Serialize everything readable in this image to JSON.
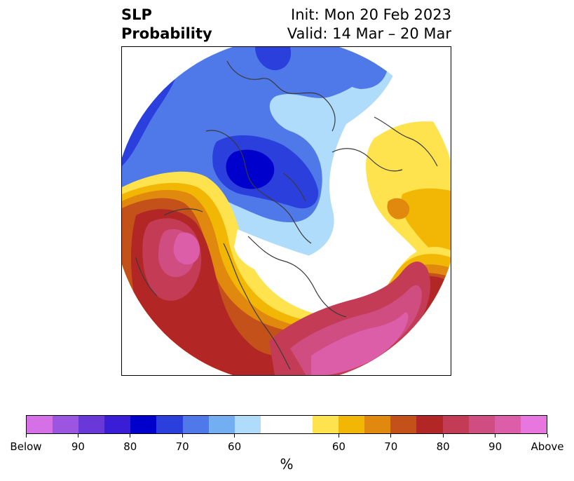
{
  "title": {
    "left_line1": "SLP",
    "left_line2": "Probability",
    "right_line1": "Init: Mon 20 Feb 2023",
    "right_line2": "Valid: 14 Mar – 20 Mar"
  },
  "map": {
    "type": "polar stereographic probability map",
    "colors": {
      "below_strong": "#0000cc",
      "below_mid": "#2a3fdc",
      "below_light": "#4f78e8",
      "below_pale": "#aedcfa",
      "neutral": "#ffffff",
      "above_pale": "#ffe34e",
      "above_light": "#f2b705",
      "above_mid": "#e0890e",
      "above_orange": "#c4511a",
      "above_red": "#b32626",
      "above_deep": "#c43b55",
      "above_pink": "#cf4d80",
      "above_max": "#dd5ea8",
      "coast": "#3a3a3a"
    }
  },
  "colorbar": {
    "segments": [
      "#d670e6",
      "#9b55e0",
      "#6a37d8",
      "#3a1dd6",
      "#0000cc",
      "#2a3fdc",
      "#4f78e8",
      "#73aef3",
      "#aedcfa",
      "#ffffff",
      "#ffffff",
      "#ffe34e",
      "#f2b705",
      "#e0890e",
      "#c4511a",
      "#b32626",
      "#c43b55",
      "#cf4d80",
      "#dd5ea8",
      "#e777de"
    ],
    "ticks": [
      "Below",
      "90",
      "80",
      "70",
      "60",
      "60",
      "70",
      "80",
      "90",
      "Above"
    ],
    "label": "%"
  }
}
